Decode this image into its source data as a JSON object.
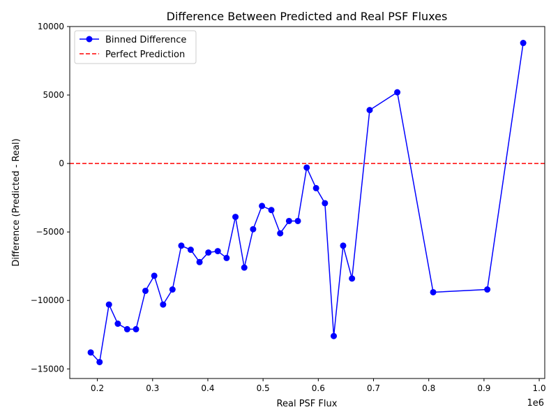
{
  "chart_data": {
    "type": "line",
    "title": "Difference Between Predicted and Real PSF Fluxes",
    "xlabel": "Real PSF Flux",
    "ylabel": "Difference (Predicted - Real)",
    "x_offset_label": "1e6",
    "xlim": [
      0.15,
      1.01
    ],
    "ylim": [
      -15700,
      10000
    ],
    "x_ticks": [
      0.2,
      0.3,
      0.4,
      0.5,
      0.6,
      0.7,
      0.8,
      0.9,
      1.0
    ],
    "x_tick_labels": [
      "0.2",
      "0.3",
      "0.4",
      "0.5",
      "0.6",
      "0.7",
      "0.8",
      "0.9",
      "1.0"
    ],
    "y_ticks": [
      -15000,
      -10000,
      -5000,
      0,
      5000,
      10000
    ],
    "y_tick_labels": [
      "−15000",
      "−10000",
      "−5000",
      "0",
      "5000",
      "10000"
    ],
    "grid": false,
    "legend_position": "top-left",
    "series": [
      {
        "name": "Binned Difference",
        "color": "#0000ff",
        "marker": "circle",
        "x": [
          0.188,
          0.204,
          0.221,
          0.237,
          0.254,
          0.27,
          0.287,
          0.303,
          0.319,
          0.336,
          0.352,
          0.369,
          0.385,
          0.401,
          0.418,
          0.434,
          0.45,
          0.466,
          0.482,
          0.498,
          0.515,
          0.531,
          0.547,
          0.563,
          0.579,
          0.596,
          0.612,
          0.628,
          0.645,
          0.661,
          0.693,
          0.743,
          0.808,
          0.906,
          0.971
        ],
        "y": [
          -13800,
          -14500,
          -10300,
          -11700,
          -12100,
          -12100,
          -9300,
          -8200,
          -10300,
          -9200,
          -6000,
          -6300,
          -7200,
          -6500,
          -6400,
          -6900,
          -3900,
          -7600,
          -4800,
          -3100,
          -3400,
          -5100,
          -4200,
          -4200,
          -300,
          -1800,
          -2900,
          -12600,
          -6000,
          -8400,
          3900,
          5200,
          -9400,
          -9200,
          8800
        ]
      },
      {
        "name": "Perfect Prediction",
        "color": "#ff0000",
        "style": "dashed",
        "y_constant": 0
      }
    ]
  }
}
